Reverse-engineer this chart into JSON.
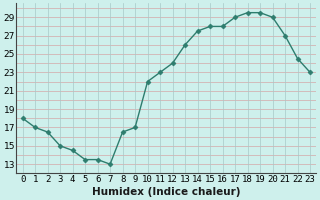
{
  "x": [
    0,
    1,
    2,
    3,
    4,
    5,
    6,
    7,
    8,
    9,
    10,
    11,
    12,
    13,
    14,
    15,
    16,
    17,
    18,
    19,
    20,
    21,
    22,
    23
  ],
  "y": [
    18,
    17,
    16.5,
    15,
    14.5,
    13.5,
    13.5,
    13,
    16.5,
    17,
    22,
    23,
    24,
    26,
    27.5,
    28,
    28,
    29,
    29.5,
    29.5,
    29,
    27,
    24.5,
    23
  ],
  "line_color": "#2e7d6e",
  "marker": "D",
  "marker_size": 2.5,
  "bg_color": "#cef0ec",
  "grid_h_color": "#d4a8a8",
  "grid_v_color": "#a8c8c8",
  "xlabel": "Humidex (Indice chaleur)",
  "xlim": [
    -0.5,
    23.5
  ],
  "ylim": [
    12,
    30.5
  ],
  "yticks": [
    13,
    15,
    17,
    19,
    21,
    23,
    25,
    27,
    29
  ],
  "xtick_labels": [
    "0",
    "1",
    "2",
    "3",
    "4",
    "5",
    "6",
    "7",
    "8",
    "9",
    "10",
    "11",
    "12",
    "13",
    "14",
    "15",
    "16",
    "17",
    "18",
    "19",
    "20",
    "21",
    "22",
    "23"
  ],
  "xlabel_fontsize": 7.5,
  "tick_fontsize": 6.5,
  "linewidth": 1.0
}
